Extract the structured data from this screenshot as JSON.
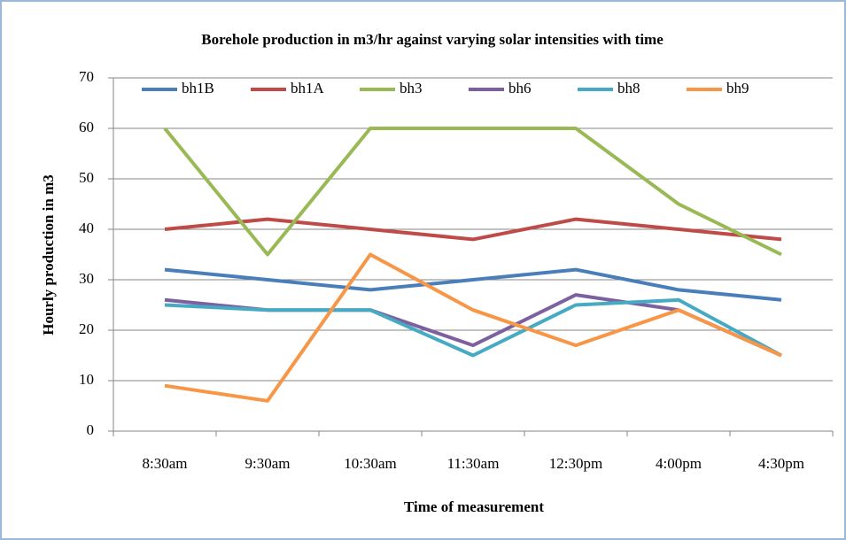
{
  "chart_data": {
    "type": "line",
    "title": "Borehole production  in m3/hr against varying solar intensities  with time",
    "x_label": "Time of measurement",
    "y_label": "Hourly production  in m3",
    "categories": [
      "8:30am",
      "9:30am",
      "10:30am",
      "11:30am",
      "12:30pm",
      "4:00pm",
      "4:30pm"
    ],
    "series": [
      {
        "name": "bh1B",
        "color": "#4a7ebb",
        "values": [
          32,
          30,
          28,
          30,
          32,
          28,
          26
        ]
      },
      {
        "name": "bh1A",
        "color": "#be4b48",
        "values": [
          40,
          42,
          40,
          38,
          42,
          40,
          38
        ]
      },
      {
        "name": "bh3",
        "color": "#98b954",
        "values": [
          60,
          35,
          60,
          60,
          60,
          45,
          35
        ]
      },
      {
        "name": "bh6",
        "color": "#7d60a0",
        "values": [
          26,
          24,
          24,
          17,
          27,
          24,
          15
        ]
      },
      {
        "name": "bh8",
        "color": "#46aac5",
        "values": [
          25,
          24,
          24,
          15,
          25,
          26,
          15
        ]
      },
      {
        "name": "bh9",
        "color": "#f79646",
        "values": [
          9,
          6,
          35,
          24,
          17,
          24,
          15
        ]
      }
    ],
    "ylim": [
      0,
      70
    ],
    "yticks": [
      0,
      10,
      20,
      30,
      40,
      50,
      60,
      70
    ],
    "grid": true,
    "legend": "top"
  }
}
